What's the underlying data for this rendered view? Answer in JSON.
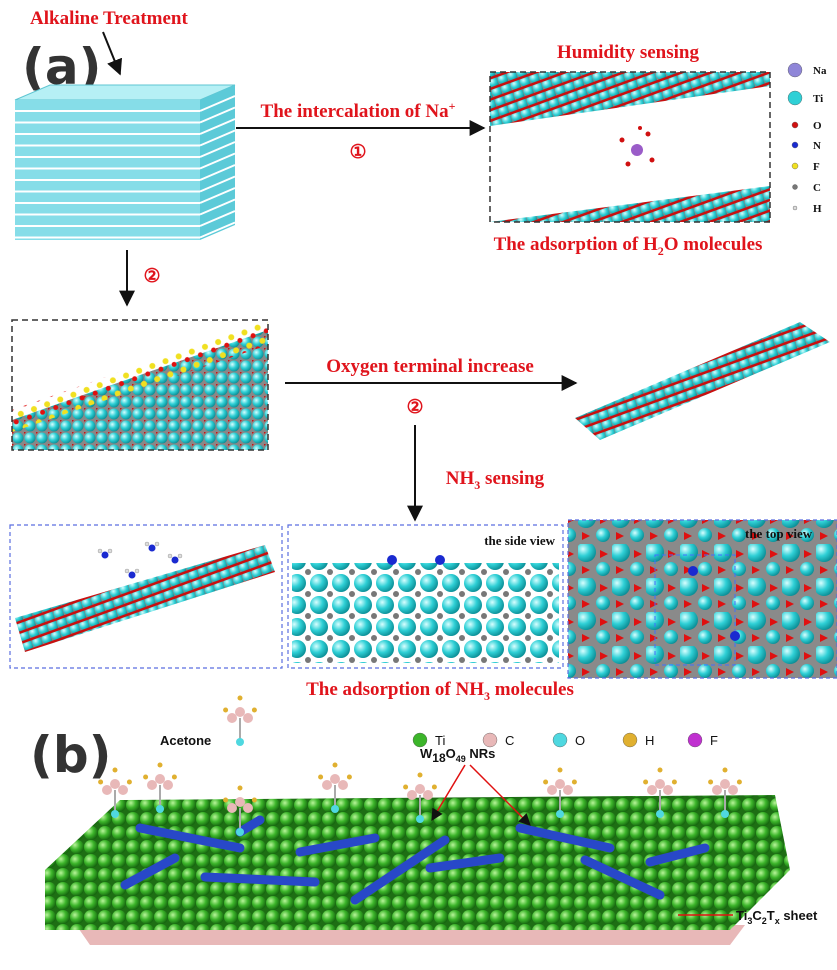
{
  "panel_a": {
    "label": "(a)",
    "treatment": "Alkaline Treatment",
    "intercalation": {
      "text": [
        "The intercalation of Na",
        "+"
      ],
      "step": "①"
    },
    "humidity": {
      "title": "Humidity sensing",
      "caption": [
        "The adsorption of H",
        "2",
        "O molecules"
      ]
    },
    "legend": [
      "Na",
      "Ti",
      "O",
      "N",
      "F",
      "C",
      "H"
    ],
    "step_down": "②",
    "oxygen": {
      "text": "Oxygen terminal increase",
      "step": "②"
    },
    "nh3_sensing": [
      "NH",
      "3",
      " sensing"
    ],
    "side_view": "the side view",
    "top_view": "the top view",
    "nh3_caption": [
      "The adsorption of NH",
      "3",
      " molecules"
    ]
  },
  "panel_b": {
    "label": "(b)",
    "acetone": "Acetone",
    "legend": [
      "Ti",
      "C",
      "O",
      "H",
      "F"
    ],
    "nanorods": [
      "W",
      "18",
      "O",
      "49",
      " NRs"
    ],
    "sheet": [
      "Ti",
      "3",
      "C",
      "2",
      "T",
      "x",
      " sheet"
    ]
  }
}
